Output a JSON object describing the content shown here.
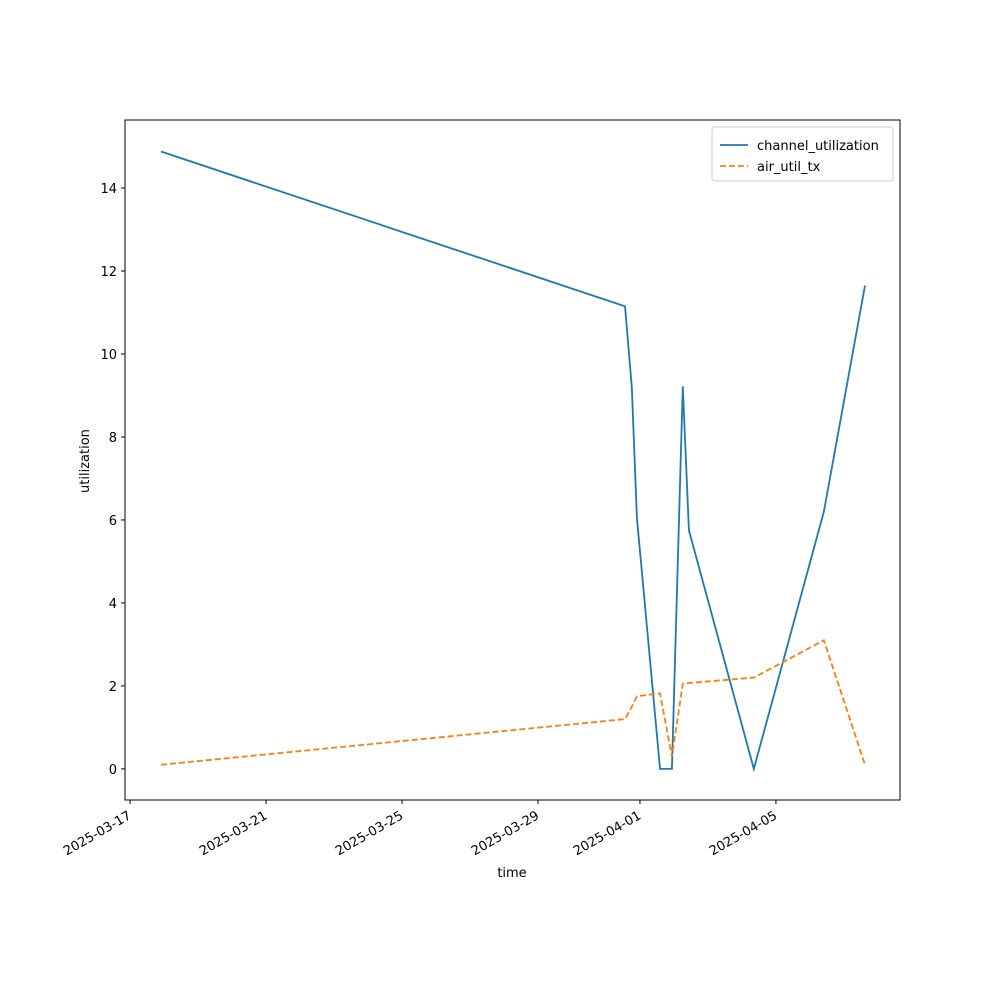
{
  "chart_data": {
    "type": "line",
    "x_label": "time",
    "y_label": "utilization",
    "x": [
      20164.91,
      20178.56,
      20178.76,
      20178.91,
      20179.59,
      20179.94,
      20180.26,
      20180.44,
      20182.35,
      20184.41,
      20185.62
    ],
    "series": [
      {
        "name": "channel_utilization",
        "color": "#1f77b4",
        "dash": "solid",
        "values": [
          14.88,
          11.15,
          9.2,
          6.05,
          0,
          0,
          9.22,
          5.75,
          0,
          6.2,
          11.65
        ]
      },
      {
        "name": "air_util_tx",
        "color": "#ff7f0e",
        "dash": "dashed",
        "values": [
          0.1,
          1.2,
          1.5,
          1.75,
          1.82,
          0.3,
          2.05,
          2.07,
          2.2,
          3.1,
          0.1
        ]
      }
    ],
    "xlim": [
      20163.85,
      20186.65
    ],
    "xticks": [
      {
        "value": 20164,
        "label": "2025-03-17"
      },
      {
        "value": 20168,
        "label": "2025-03-21"
      },
      {
        "value": 20172,
        "label": "2025-03-25"
      },
      {
        "value": 20176,
        "label": "2025-03-29"
      },
      {
        "value": 20179,
        "label": "2025-04-01"
      },
      {
        "value": 20183,
        "label": "2025-04-05"
      }
    ],
    "ylim": [
      -0.75,
      15.64
    ],
    "yticks": [
      0,
      2,
      4,
      6,
      8,
      10,
      12,
      14
    ],
    "legend": "upper right",
    "grid": false
  }
}
